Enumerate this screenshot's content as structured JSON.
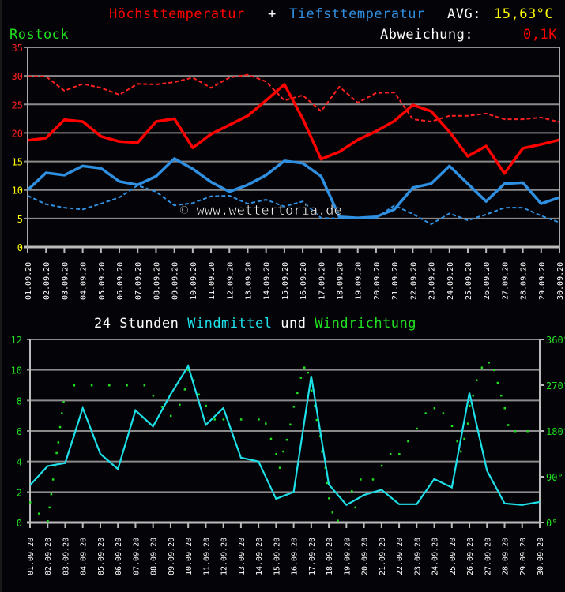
{
  "header": {
    "title_max": "Höchsttemperatur",
    "title_plus": "+",
    "title_min": "Tiefsttemperatur",
    "avg_label": "AVG:",
    "avg_value": "15,63°C",
    "location": "Rostock",
    "deviation_label": "Abweichung:",
    "deviation_value": "0,1K"
  },
  "colors": {
    "max": "#ff0000",
    "max_normal": "#ff2020",
    "min": "#2f8fe0",
    "min_normal": "#2f8fe0",
    "wind": "#1ee0e8",
    "direction": "#20e020",
    "avg": "#ffff00",
    "location": "#20e020",
    "grid": "#9a9a9a"
  },
  "watermark": "© www.wettertoria.de",
  "wind_title": {
    "part1": "24 Stunden",
    "part2": "Windmittel",
    "part3": "und",
    "part4": "Windrichtung"
  },
  "chart_data": [
    {
      "type": "line",
      "title": "Höchsttemperatur + Tiefsttemperatur",
      "location": "Rostock",
      "xlabel": "",
      "ylabel": "°C",
      "ylim": [
        0,
        35
      ],
      "yticks": [
        0,
        5,
        10,
        15,
        20,
        25,
        30,
        35
      ],
      "grid": true,
      "categories": [
        "01.09.20",
        "02.09.20",
        "03.09.20",
        "04.09.20",
        "05.09.20",
        "06.09.20",
        "07.09.20",
        "08.09.20",
        "09.09.20",
        "10.09.20",
        "11.09.20",
        "12.09.20",
        "13.09.20",
        "14.09.20",
        "15.09.20",
        "16.09.20",
        "17.09.20",
        "18.09.20",
        "19.09.20",
        "20.09.20",
        "21.09.20",
        "22.09.20",
        "23.09.20",
        "24.09.20",
        "25.09.20",
        "26.09.20",
        "27.09.20",
        "28.09.20",
        "29.09.20",
        "30.09.20"
      ],
      "series": [
        {
          "name": "Höchsttemperatur",
          "style": "solid",
          "color": "#ff0000",
          "values": [
            18.7,
            19.1,
            22.3,
            22.0,
            19.4,
            18.5,
            18.3,
            22.0,
            22.5,
            17.4,
            19.8,
            21.4,
            23.0,
            25.7,
            28.5,
            22.5,
            15.4,
            16.7,
            18.8,
            20.3,
            22.1,
            24.9,
            23.8,
            20.2,
            15.9,
            17.7,
            12.9,
            17.3,
            18.0,
            18.8
          ]
        },
        {
          "name": "Höchsttemperatur Normal",
          "style": "dashed",
          "color": "#ff2020",
          "values": [
            29.9,
            29.9,
            27.4,
            28.6,
            27.9,
            26.7,
            28.6,
            28.5,
            28.9,
            29.7,
            27.9,
            29.7,
            30.2,
            29.0,
            25.7,
            26.6,
            23.8,
            28.1,
            25.3,
            27.0,
            27.1,
            22.4,
            22.0,
            23.0,
            23.0,
            23.4,
            22.4,
            22.4,
            22.7,
            21.9
          ]
        },
        {
          "name": "Tiefsttemperatur",
          "style": "solid",
          "color": "#2f8fe0",
          "values": [
            10.0,
            13.0,
            12.6,
            14.2,
            13.8,
            11.5,
            10.9,
            12.4,
            15.5,
            13.7,
            11.4,
            9.7,
            10.9,
            12.6,
            15.1,
            14.7,
            12.4,
            5.3,
            5.1,
            5.3,
            6.6,
            10.4,
            11.1,
            14.2,
            11.1,
            8.0,
            11.1,
            11.3,
            7.6,
            8.7
          ]
        },
        {
          "name": "Tiefsttemperatur Normal",
          "style": "dashed",
          "color": "#2f8fe0",
          "values": [
            9.0,
            7.5,
            6.9,
            6.6,
            7.6,
            8.7,
            10.8,
            9.7,
            7.3,
            7.7,
            8.9,
            9.0,
            7.6,
            8.3,
            7.1,
            8.0,
            5.1,
            5.0,
            5.0,
            5.1,
            7.3,
            5.8,
            4.0,
            5.9,
            4.7,
            5.7,
            6.9,
            6.9,
            5.5,
            4.3
          ]
        }
      ],
      "annotations": [
        "AVG: 15,63°C",
        "Abweichung: 0,1K",
        "© www.wettertoria.de"
      ]
    },
    {
      "type": "line",
      "title": "24 Stunden Windmittel und Windrichtung",
      "xlabel": "",
      "ylabel": "Windmittel",
      "ylim": [
        0,
        12
      ],
      "yticks": [
        0,
        2,
        4,
        6,
        8,
        10,
        12
      ],
      "y2label": "Windrichtung",
      "y2lim": [
        0,
        360
      ],
      "y2ticks": [
        "0°",
        "90°",
        "180°",
        "270°",
        "360°"
      ],
      "grid": true,
      "categories": [
        "01.09.20",
        "02.09.20",
        "03.09.20",
        "04.09.20",
        "05.09.20",
        "06.09.20",
        "07.09.20",
        "08.09.20",
        "09.09.20",
        "10.09.20",
        "11.09.20",
        "12.09.20",
        "13.09.20",
        "14.09.20",
        "15.09.20",
        "16.09.20",
        "17.09.20",
        "18.09.20",
        "19.09.20",
        "20.09.20",
        "21.09.20",
        "22.09.20",
        "23.09.20",
        "24.09.20",
        "25.09.20",
        "26.09.20",
        "27.09.20",
        "28.09.20",
        "29.09.20",
        "30.09.20"
      ],
      "series": [
        {
          "name": "Windmittel",
          "style": "solid",
          "color": "#1ee0e8",
          "values": [
            2.45,
            3.7,
            3.9,
            7.5,
            4.5,
            3.5,
            7.35,
            6.3,
            8.4,
            10.25,
            6.4,
            7.5,
            4.25,
            4.0,
            1.55,
            2.0,
            9.6,
            2.5,
            1.15,
            1.8,
            2.15,
            1.2,
            1.2,
            2.85,
            2.3,
            8.5,
            3.4,
            1.25,
            1.15,
            1.35
          ]
        },
        {
          "name": "Windrichtung",
          "style": "dots",
          "color": "#20e020",
          "points": [
            [
              1.0,
              40
            ],
            [
              1.5,
              18
            ],
            [
              2.0,
              3
            ],
            [
              2.1,
              30
            ],
            [
              2.2,
              56
            ],
            [
              2.3,
              85
            ],
            [
              2.4,
              112
            ],
            [
              2.5,
              137
            ],
            [
              2.6,
              158
            ],
            [
              2.7,
              188
            ],
            [
              2.8,
              215
            ],
            [
              2.9,
              237
            ],
            [
              3.5,
              270
            ],
            [
              4.5,
              270
            ],
            [
              5.5,
              270
            ],
            [
              6.5,
              270
            ],
            [
              7.5,
              270
            ],
            [
              8.0,
              250
            ],
            [
              8.5,
              228
            ],
            [
              9.0,
              210
            ],
            [
              9.5,
              232
            ],
            [
              9.8,
              262
            ],
            [
              10.0,
              300
            ],
            [
              10.3,
              280
            ],
            [
              10.6,
              252
            ],
            [
              11.0,
              230
            ],
            [
              11.5,
              203
            ],
            [
              12.0,
              203
            ],
            [
              13.0,
              203
            ],
            [
              14.0,
              203
            ],
            [
              14.4,
              195
            ],
            [
              14.7,
              165
            ],
            [
              15.0,
              135
            ],
            [
              15.2,
              108
            ],
            [
              15.4,
              140
            ],
            [
              15.6,
              163
            ],
            [
              15.8,
              193
            ],
            [
              16.0,
              228
            ],
            [
              16.2,
              255
            ],
            [
              16.4,
              285
            ],
            [
              16.6,
              305
            ],
            [
              16.8,
              295
            ],
            [
              17.0,
              260
            ],
            [
              17.2,
              230
            ],
            [
              17.3,
              202
            ],
            [
              17.5,
              170
            ],
            [
              17.6,
              140
            ],
            [
              17.8,
              108
            ],
            [
              17.9,
              78
            ],
            [
              18.0,
              48
            ],
            [
              18.2,
              20
            ],
            [
              18.5,
              4
            ],
            [
              19.5,
              30
            ],
            [
              19.3,
              62
            ],
            [
              19.8,
              85
            ],
            [
              20.5,
              85
            ],
            [
              21.0,
              112
            ],
            [
              21.5,
              135
            ],
            [
              22.0,
              135
            ],
            [
              22.5,
              160
            ],
            [
              23.0,
              185
            ],
            [
              23.5,
              215
            ],
            [
              24.0,
              225
            ],
            [
              24.5,
              215
            ],
            [
              25.0,
              190
            ],
            [
              25.3,
              160
            ],
            [
              25.5,
              140
            ],
            [
              25.7,
              165
            ],
            [
              25.9,
              195
            ],
            [
              26.0,
              230
            ],
            [
              26.2,
              250
            ],
            [
              26.4,
              280
            ],
            [
              26.7,
              305
            ],
            [
              27.1,
              315
            ],
            [
              27.4,
              300
            ],
            [
              27.6,
              275
            ],
            [
              27.8,
              250
            ],
            [
              28.0,
              225
            ],
            [
              28.2,
              192
            ],
            [
              28.6,
              180
            ],
            [
              29.3,
              180
            ]
          ]
        }
      ]
    }
  ]
}
